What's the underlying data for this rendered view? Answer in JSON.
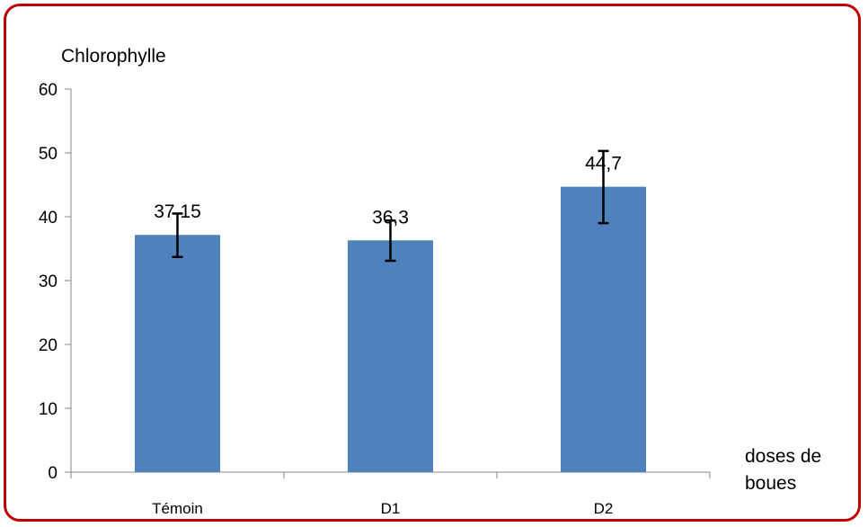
{
  "chart_data": {
    "type": "bar",
    "ylabel": "Chlorophylle",
    "xlabel": "doses de boues",
    "categories": [
      "Témoin",
      "D1",
      "D2"
    ],
    "values": [
      37.15,
      36.3,
      44.7
    ],
    "data_labels": [
      "37,15",
      "36,3",
      "44,7"
    ],
    "error_bars": [
      {
        "low": 33.7,
        "high": 40.5
      },
      {
        "low": 33.1,
        "high": 39.4
      },
      {
        "low": 39.0,
        "high": 50.3
      }
    ],
    "ylim": [
      0,
      60
    ],
    "yticks": [
      0,
      10,
      20,
      30,
      40,
      50,
      60
    ],
    "ytick_labels": [
      "0",
      "10",
      "20",
      "30",
      "40",
      "50",
      "60"
    ],
    "grid": false,
    "bar_color": "#4f81bd",
    "error_color": "#000000",
    "frame_color": "#c00000"
  }
}
